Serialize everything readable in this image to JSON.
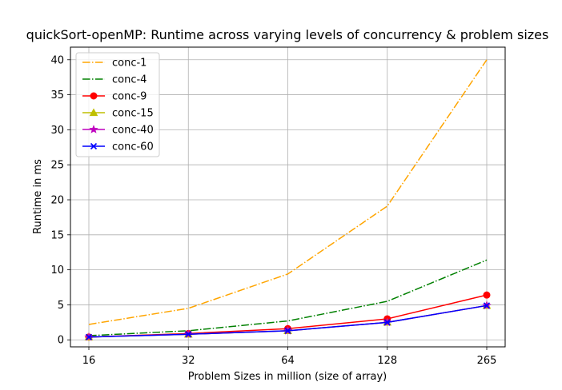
{
  "chart_data": {
    "type": "line",
    "title": "quickSort-openMP: Runtime across varying levels of concurrency & problem sizes",
    "xlabel": "Problem Sizes in million (size of array)",
    "ylabel": "Runtime in ms",
    "categories": [
      "16",
      "32",
      "64",
      "128",
      "265"
    ],
    "ylim": [
      -1.0,
      41.8
    ],
    "yticks": [
      0,
      5,
      10,
      15,
      20,
      25,
      30,
      35,
      40
    ],
    "grid": true,
    "legend_position": "top-left",
    "series": [
      {
        "name": "conc-1",
        "values": [
          2.2,
          4.5,
          9.4,
          19.1,
          40.0
        ],
        "color": "#ffa500",
        "dash": "dashdot",
        "marker": "none"
      },
      {
        "name": "conc-4",
        "values": [
          0.6,
          1.3,
          2.7,
          5.5,
          11.4
        ],
        "color": "#008000",
        "dash": "dashdot",
        "marker": "none"
      },
      {
        "name": "conc-9",
        "values": [
          0.4,
          0.9,
          1.6,
          3.0,
          6.4
        ],
        "color": "#ff0000",
        "dash": "solid",
        "marker": "circle"
      },
      {
        "name": "conc-15",
        "values": [
          0.4,
          0.8,
          1.3,
          2.5,
          4.9
        ],
        "color": "#bfbf00",
        "dash": "solid",
        "marker": "triangle"
      },
      {
        "name": "conc-40",
        "values": [
          0.4,
          0.8,
          1.3,
          2.5,
          4.9
        ],
        "color": "#bf00bf",
        "dash": "solid",
        "marker": "star"
      },
      {
        "name": "conc-60",
        "values": [
          0.4,
          0.8,
          1.3,
          2.5,
          4.9
        ],
        "color": "#0000ff",
        "dash": "solid",
        "marker": "x"
      }
    ]
  }
}
